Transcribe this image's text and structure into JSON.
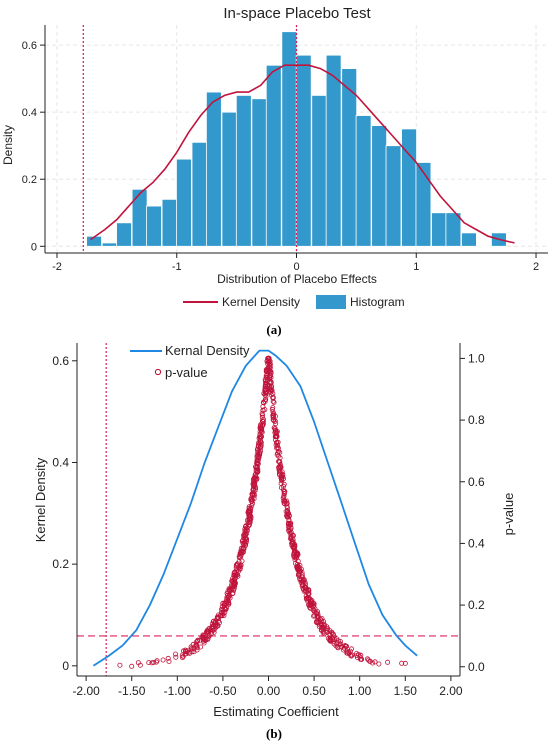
{
  "figure": {
    "caption_a": "(a)",
    "caption_b": "(b)"
  },
  "chart_data": [
    {
      "type": "bar",
      "title": "In-space Placebo Test",
      "xlabel": "Distribution of Placebo Effects",
      "ylabel": "Density",
      "xlim": [
        -2.1,
        2.1
      ],
      "ylim": [
        -0.02,
        0.66
      ],
      "x_ticks": [
        -2,
        -1,
        0,
        1,
        2
      ],
      "y_ticks": [
        0,
        0.2,
        0.4,
        0.6
      ],
      "grid": true,
      "legend": {
        "position": "bottom",
        "items": [
          "Kernel Density",
          "Histogram"
        ]
      },
      "colors": {
        "histogram": "#3399cc",
        "kde": "#c0143c",
        "ref_line": "#e0205a"
      },
      "bin_width": 0.125,
      "histogram": {
        "name": "Histogram",
        "bin_centers": [
          -1.69,
          -1.56,
          -1.44,
          -1.31,
          -1.19,
          -1.06,
          -0.94,
          -0.81,
          -0.69,
          -0.56,
          -0.44,
          -0.31,
          -0.19,
          -0.06,
          0.06,
          0.19,
          0.31,
          0.44,
          0.56,
          0.69,
          0.81,
          0.94,
          1.06,
          1.19,
          1.31,
          1.44,
          1.56,
          1.69
        ],
        "values": [
          0.03,
          0.01,
          0.07,
          0.17,
          0.12,
          0.14,
          0.26,
          0.31,
          0.46,
          0.4,
          0.45,
          0.44,
          0.54,
          0.64,
          0.57,
          0.45,
          0.57,
          0.53,
          0.39,
          0.36,
          0.3,
          0.35,
          0.25,
          0.1,
          0.1,
          0.04,
          0.0,
          0.04
        ]
      },
      "kde": {
        "name": "Kernel Density",
        "x": [
          -1.72,
          -1.6,
          -1.5,
          -1.4,
          -1.3,
          -1.2,
          -1.1,
          -1.0,
          -0.9,
          -0.8,
          -0.7,
          -0.6,
          -0.5,
          -0.4,
          -0.3,
          -0.2,
          -0.1,
          0.0,
          0.1,
          0.2,
          0.3,
          0.4,
          0.5,
          0.6,
          0.7,
          0.8,
          0.9,
          1.0,
          1.1,
          1.2,
          1.3,
          1.4,
          1.5,
          1.6,
          1.7,
          1.82
        ],
        "y": [
          0.02,
          0.05,
          0.08,
          0.12,
          0.16,
          0.19,
          0.23,
          0.28,
          0.34,
          0.39,
          0.43,
          0.45,
          0.46,
          0.46,
          0.48,
          0.52,
          0.54,
          0.54,
          0.54,
          0.53,
          0.51,
          0.48,
          0.45,
          0.41,
          0.37,
          0.33,
          0.29,
          0.25,
          0.2,
          0.15,
          0.11,
          0.07,
          0.05,
          0.03,
          0.02,
          0.01
        ]
      },
      "ref_lines_x": [
        -1.78,
        0
      ]
    },
    {
      "type": "line",
      "title": "",
      "xlabel": "Estimating Coefficient",
      "ylabel": "Kernel Density",
      "y2label": "p-value",
      "xlim": [
        -2.1,
        2.1
      ],
      "ylim": [
        -0.02,
        0.635
      ],
      "y2lim": [
        -0.03,
        1.05
      ],
      "x_ticks": [
        -2.0,
        -1.5,
        -1.0,
        -0.5,
        0.0,
        0.5,
        1.0,
        1.5,
        2.0
      ],
      "x_tick_labels": [
        "-2.00",
        "-1.50",
        "-1.00",
        "-0.50",
        "0.00",
        "0.50",
        "1.00",
        "1.50",
        "2.00"
      ],
      "y_ticks": [
        0,
        0.2,
        0.4,
        0.6
      ],
      "y_tick_labels": [
        "0",
        "0.2",
        "0.4",
        "0.6"
      ],
      "y2_ticks": [
        0,
        0.2,
        0.4,
        0.6,
        0.8,
        1.0
      ],
      "y2_tick_labels": [
        "0.0",
        "0.2",
        "0.4",
        "0.6",
        "0.8",
        "1.0"
      ],
      "grid": false,
      "legend": {
        "position": "top-left",
        "items": [
          "Kernal Density",
          "p-value"
        ]
      },
      "colors": {
        "kde": "#1e88e5",
        "pvalue": "#c0143c",
        "ref_line": "#e0205a"
      },
      "kde": {
        "name": "Kernal Density",
        "x": [
          -1.92,
          -1.75,
          -1.6,
          -1.45,
          -1.3,
          -1.15,
          -1.0,
          -0.85,
          -0.7,
          -0.55,
          -0.4,
          -0.25,
          -0.1,
          0.0,
          0.08,
          0.2,
          0.35,
          0.5,
          0.65,
          0.8,
          0.95,
          1.1,
          1.25,
          1.4,
          1.5,
          1.63
        ],
        "y": [
          0.0,
          0.02,
          0.04,
          0.07,
          0.12,
          0.18,
          0.25,
          0.32,
          0.4,
          0.47,
          0.54,
          0.59,
          0.62,
          0.62,
          0.61,
          0.59,
          0.55,
          0.48,
          0.4,
          0.32,
          0.24,
          0.16,
          0.1,
          0.06,
          0.04,
          0.02
        ]
      },
      "pvalue_scatter": {
        "name": "p-value",
        "count": 900,
        "x_range": [
          -1.92,
          1.5
        ]
      },
      "ref_line_x": -1.78,
      "ref_line_pvalue": 0.1
    }
  ]
}
